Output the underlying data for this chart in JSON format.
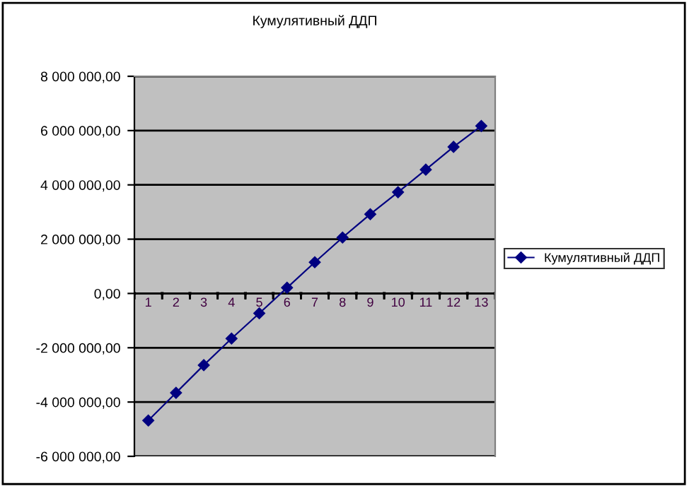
{
  "chart_data": {
    "type": "line",
    "title": "Кумулятивный ДДП",
    "categories": [
      "1",
      "2",
      "3",
      "4",
      "5",
      "6",
      "7",
      "8",
      "9",
      "10",
      "11",
      "12",
      "13"
    ],
    "series": [
      {
        "name": "Кумулятивный ДДП",
        "color": "#000080",
        "values": [
          -4680000,
          -3660000,
          -2640000,
          -1660000,
          -730000,
          210000,
          1150000,
          2060000,
          2920000,
          3730000,
          4560000,
          5400000,
          6170000
        ]
      }
    ],
    "ylim": [
      -6000000,
      8000000
    ],
    "yticks": [
      {
        "value": 8000000,
        "label": "8 000 000,00"
      },
      {
        "value": 6000000,
        "label": "6 000 000,00"
      },
      {
        "value": 4000000,
        "label": "4 000 000,00"
      },
      {
        "value": 2000000,
        "label": "2 000 000,00"
      },
      {
        "value": 0,
        "label": "0,00"
      },
      {
        "value": -2000000,
        "label": "-2 000 000,00"
      },
      {
        "value": -4000000,
        "label": "-4 000 000,00"
      },
      {
        "value": -6000000,
        "label": "-6 000 000,00"
      }
    ],
    "grid": "y",
    "legend": "right",
    "marker": "diamond",
    "line_style": "solid"
  }
}
